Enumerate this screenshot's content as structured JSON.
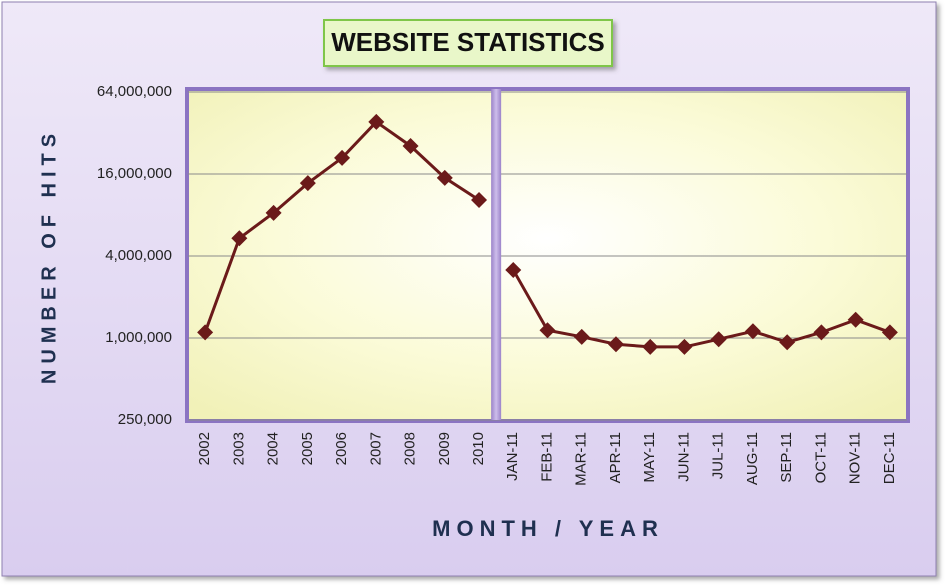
{
  "chart_data": {
    "type": "line",
    "title": "WEBSITE STATISTICS",
    "y_label": "NUMBER OF HITS",
    "x_label": "MONTH / YEAR",
    "categories": [
      "2002",
      "2003",
      "2004",
      "2005",
      "2006",
      "2007",
      "2008",
      "2009",
      "2010",
      "JAN-11",
      "FEB-11",
      "MAR-11",
      "APR-11",
      "MAY-11",
      "JUN-11",
      "JUL-11",
      "AUG-11",
      "SEP-11",
      "OCT-11",
      "NOV-11",
      "DEC-11"
    ],
    "series": [
      {
        "color": "#6b1a1a",
        "values": [
          1100000,
          5400000,
          8300000,
          13700000,
          21000000,
          38600000,
          25700000,
          15000000,
          10300000,
          null,
          null,
          null,
          null,
          null,
          null,
          null,
          null,
          null,
          null,
          null,
          null
        ]
      },
      {
        "color": "#6b1a1a",
        "values": [
          null,
          null,
          null,
          null,
          null,
          null,
          null,
          null,
          null,
          3160000,
          1140000,
          1020000,
          900000,
          860000,
          860000,
          980000,
          1120000,
          930000,
          1100000,
          1360000,
          1100000
        ]
      }
    ],
    "log_scale": true,
    "ylim": [
      250000,
      64000000
    ],
    "yticks": [
      {
        "value": 250000,
        "label": "250,000"
      },
      {
        "value": 1000000,
        "label": "1,000,000"
      },
      {
        "value": 4000000,
        "label": "4,000,000"
      },
      {
        "value": 16000000,
        "label": "16,000,000"
      },
      {
        "value": 64000000,
        "label": "64,000,000"
      }
    ],
    "grid": true
  }
}
